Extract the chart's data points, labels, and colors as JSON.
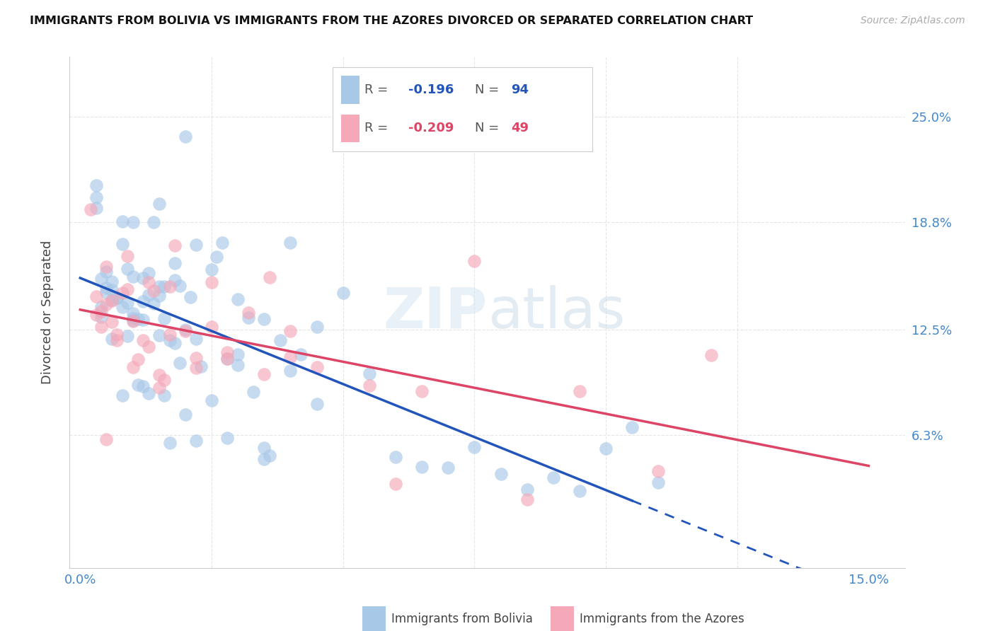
{
  "title": "IMMIGRANTS FROM BOLIVIA VS IMMIGRANTS FROM THE AZORES DIVORCED OR SEPARATED CORRELATION CHART",
  "source": "Source: ZipAtlas.com",
  "ylabel_label": "Divorced or Separated",
  "xlim": [
    -0.002,
    0.157
  ],
  "ylim": [
    -0.015,
    0.285
  ],
  "r_bolivia": -0.196,
  "n_bolivia": 94,
  "r_azores": -0.209,
  "n_azores": 49,
  "color_bolivia": "#a8c8e8",
  "color_azores": "#f4a8b8",
  "color_bolivia_line": "#2255bb",
  "color_azores_line": "#dd4466",
  "color_tick_label": "#4488cc",
  "background_color": "#ffffff",
  "grid_color": "#e0e0e0",
  "ytick_values": [
    0.0,
    0.063,
    0.125,
    0.188,
    0.25
  ],
  "ytick_labels_right": [
    "",
    "6.3%",
    "12.5%",
    "18.8%",
    "25.0%"
  ],
  "xtick_values": [
    0.0,
    0.025,
    0.05,
    0.075,
    0.1,
    0.125,
    0.15
  ],
  "xtick_labels": [
    "0.0%",
    "",
    "",
    "",
    "",
    "",
    "15.0%"
  ]
}
